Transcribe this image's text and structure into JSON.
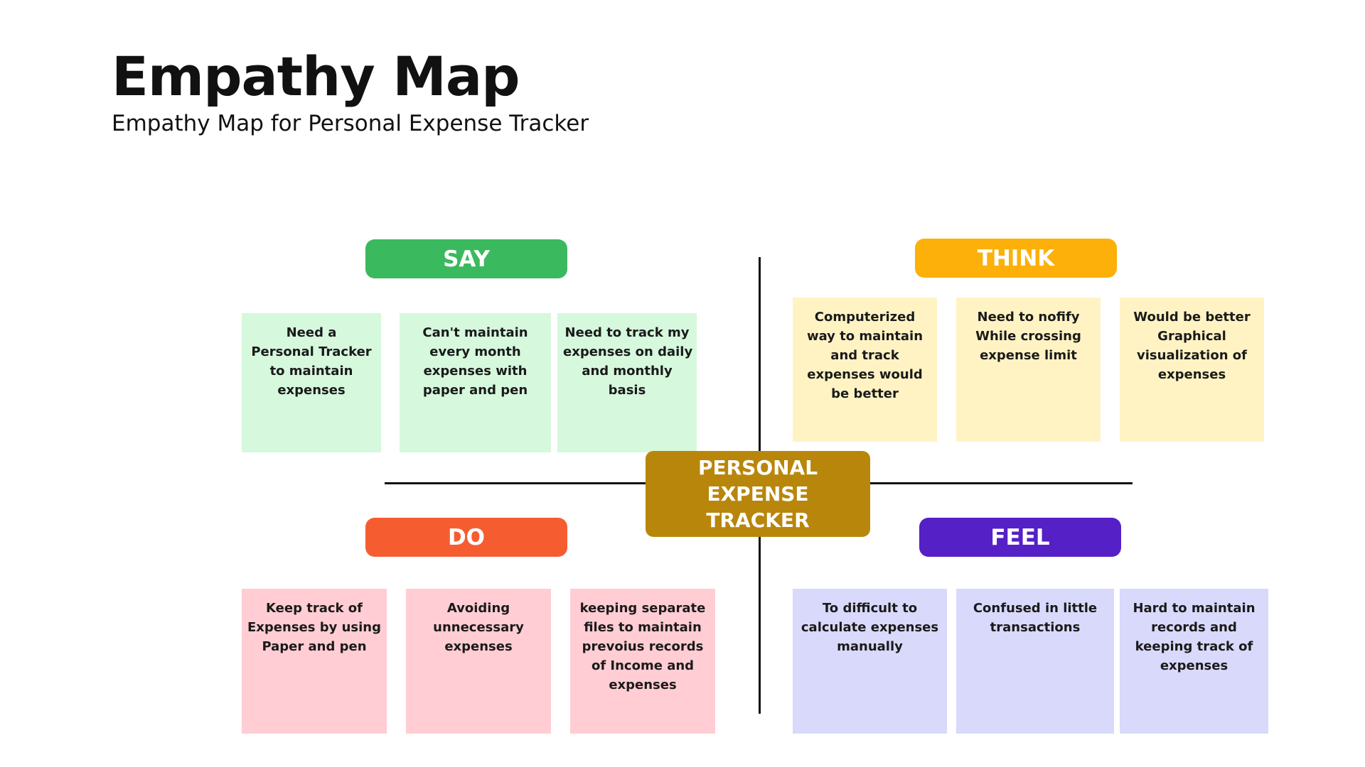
{
  "title": "Empathy Map",
  "subtitle": "Empathy Map for Personal Expense Tracker",
  "center": {
    "lines": [
      "PERSONAL",
      "EXPENSE",
      "TRACKER"
    ],
    "color": "#B8860B"
  },
  "quadrants": {
    "say": {
      "label": "SAY",
      "color": "#3BB95E",
      "note_color": "#D6F8DD",
      "notes": [
        [
          "Need a",
          "Personal Tracker",
          "to maintain",
          "expenses"
        ],
        [
          "Can't maintain",
          "every month",
          "expenses with",
          "paper and pen"
        ],
        [
          "Need to track my",
          "expenses on daily",
          "and monthly",
          "basis"
        ]
      ]
    },
    "think": {
      "label": "THINK",
      "color": "#FDB009",
      "note_color": "#FFF3C4",
      "notes": [
        [
          "Computerized",
          "way to maintain",
          "and track",
          "expenses would",
          "be better"
        ],
        [
          "Need to nofify",
          "While crossing",
          "expense limit"
        ],
        [
          "Would be better",
          "Graphical",
          "visualization of",
          "expenses"
        ]
      ]
    },
    "do": {
      "label": "DO",
      "color": "#F55D31",
      "note_color": "#FFCDD3",
      "notes": [
        [
          "Keep track of",
          "Expenses by using",
          "Paper and pen"
        ],
        [
          "Avoiding",
          "unnecessary",
          "expenses"
        ],
        [
          "keeping separate",
          "files to maintain",
          "prevoius records",
          "of  Income and",
          "expenses"
        ]
      ]
    },
    "feel": {
      "label": "FEEL",
      "color": "#5520C6",
      "note_color": "#D9D9FB",
      "notes": [
        [
          "To difficult to",
          "calculate expenses",
          "manually"
        ],
        [
          "Confused in little",
          "transactions"
        ],
        [
          "Hard to maintain",
          "records and",
          "keeping track of",
          "expenses"
        ]
      ]
    }
  }
}
